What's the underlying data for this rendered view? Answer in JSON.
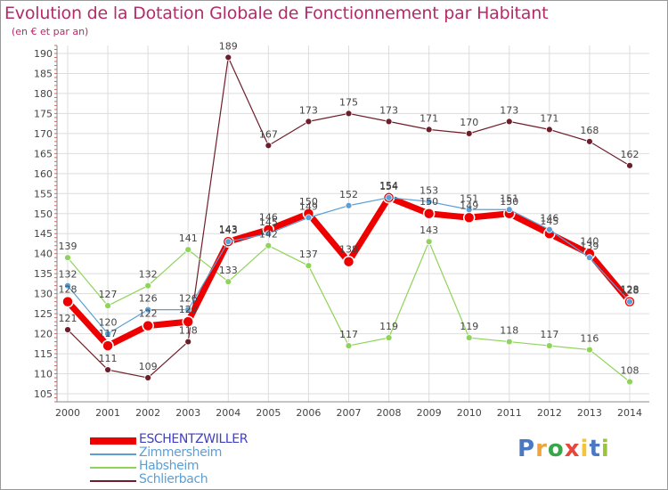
{
  "title": "Evolution de la Dotation Globale de Fonctionnement par Habitant",
  "subtitle": "(en € et par an)",
  "logo": [
    "P",
    "r",
    "o",
    "x",
    "i",
    "t",
    "i"
  ],
  "colors": {
    "title": "#b52a6a",
    "ESCHENTZWILLER": "#ee0000",
    "Zimmersheim": "#5b9fd4",
    "Habsheim": "#8fd45a",
    "Schlierbach": "#6e1e2a",
    "grid": "#dddddd",
    "axis": "#888888",
    "text": "#444444"
  },
  "chart_data": {
    "type": "line",
    "title": "Evolution de la Dotation Globale de Fonctionnement par Habitant",
    "subtitle": "(en € et par an)",
    "xlabel": "",
    "ylabel": "",
    "ylim": [
      103,
      192
    ],
    "yticks": [
      105,
      110,
      115,
      120,
      125,
      130,
      135,
      140,
      145,
      150,
      155,
      160,
      165,
      170,
      175,
      180,
      185,
      190
    ],
    "categories": [
      "2000",
      "2001",
      "2002",
      "2003",
      "2004",
      "2005",
      "2006",
      "2007",
      "2008",
      "2009",
      "2010",
      "2011",
      "2012",
      "2013",
      "2014"
    ],
    "legend_position": "bottom-left",
    "series": [
      {
        "name": "ESCHENTZWILLER",
        "values": [
          128,
          117,
          122,
          123,
          143,
          146,
          150,
          138,
          154,
          150,
          149,
          150,
          145,
          140,
          128
        ],
        "labels": [
          "128",
          "117",
          "122",
          "123",
          "143",
          "146",
          "150",
          "138",
          "154",
          "150",
          "149",
          "150",
          "145",
          "140",
          "128"
        ]
      },
      {
        "name": "Zimmersheim",
        "values": [
          132,
          120,
          126,
          126,
          143,
          145,
          149,
          152,
          154,
          153,
          151,
          151,
          146,
          139,
          128
        ],
        "labels": [
          "132",
          "120",
          "126",
          "126",
          "143",
          "145",
          "149",
          "152",
          "154",
          "153",
          "151",
          "151",
          "146",
          "139",
          "128"
        ]
      },
      {
        "name": "Habsheim",
        "values": [
          139,
          127,
          132,
          141,
          133,
          142,
          137,
          117,
          119,
          143,
          119,
          118,
          117,
          116,
          108
        ],
        "labels": [
          "139",
          "127",
          "132",
          "141",
          "133",
          "142",
          "137",
          "117",
          "119",
          "143",
          "119",
          "118",
          "117",
          "116",
          "108"
        ]
      },
      {
        "name": "Schlierbach",
        "values": [
          121,
          111,
          109,
          118,
          189,
          167,
          173,
          175,
          173,
          171,
          170,
          173,
          171,
          168,
          162
        ],
        "labels": [
          "121",
          "111",
          "109",
          "118",
          "189",
          "167",
          "173",
          "175",
          "173",
          "171",
          "170",
          "173",
          "171",
          "168",
          "162"
        ]
      }
    ]
  }
}
